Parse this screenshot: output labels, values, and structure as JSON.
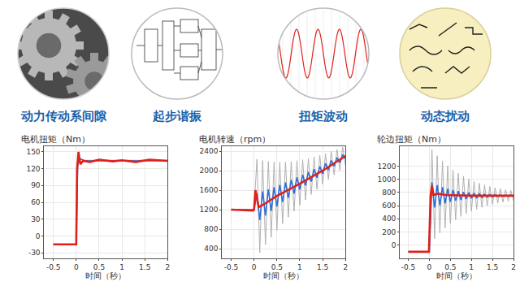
{
  "icons": [
    "动力传动系间隙",
    "起步谐振",
    "扭矩波动",
    "动态扰动"
  ],
  "chart_data": [
    {
      "type": "line",
      "title": "电机扭矩（Nm）",
      "xlabel": "时间（秒）",
      "xlim": [
        -0.7,
        2.0
      ],
      "xticks": [
        -0.5,
        0,
        0.5,
        1,
        1.5,
        2
      ],
      "ylim": [
        -40,
        160
      ],
      "yticks": [
        -30,
        0,
        30,
        60,
        90,
        120,
        150
      ],
      "grid": true,
      "series": [
        {
          "color": "#b0b0b0",
          "x": [
            -0.5,
            0,
            0.04,
            0.08,
            0.2,
            2
          ],
          "values": [
            -15,
            -15,
            145,
            130,
            135,
            135
          ]
        },
        {
          "color": "#2e6fd8",
          "x": [
            -0.5,
            0,
            0.03,
            0.07,
            0.2,
            2
          ],
          "values": [
            -15,
            -15,
            125,
            138,
            134,
            134
          ]
        },
        {
          "color": "#e0201b",
          "x": [
            -0.5,
            0,
            0.02,
            0.05,
            0.09,
            0.15,
            0.3,
            0.5,
            0.8,
            1,
            1.3,
            1.6,
            2
          ],
          "values": [
            -15,
            -15,
            120,
            150,
            128,
            134,
            132,
            136,
            133,
            135,
            132,
            136,
            134
          ]
        }
      ]
    },
    {
      "type": "line",
      "title": "电机转速（rpm）",
      "xlabel": "时间（秒）",
      "xlim": [
        -0.7,
        2.0
      ],
      "xticks": [
        -0.5,
        0,
        0.5,
        1,
        1.5,
        2
      ],
      "ylim": [
        200,
        2500
      ],
      "yticks": [
        400,
        800,
        1200,
        1600,
        2000,
        2400
      ],
      "grid": true,
      "series": [
        {
          "color": "#b0b0b0",
          "x": [
            -0.5,
            0,
            0.0625,
            0.125,
            0.1875,
            0.25,
            0.3125,
            0.375,
            0.4375,
            0.5,
            0.5625,
            0.625,
            0.6875,
            0.75,
            0.8125,
            0.875,
            0.9375,
            1,
            1.0625,
            1.125,
            1.1875,
            1.25,
            1.3125,
            1.375,
            1.4375,
            1.5,
            1.5625,
            1.625,
            1.6875,
            1.75,
            1.8125,
            1.875,
            1.9375,
            2
          ],
          "values": [
            1200,
            1200,
            2234,
            319,
            2206,
            481,
            2187,
            632,
            2176,
            777,
            2172,
            914,
            2177,
            1044,
            2187,
            1168,
            2204,
            1287,
            2224,
            1401,
            2250,
            1511,
            2280,
            1615,
            2315,
            1718,
            2351,
            1817,
            2392,
            1913,
            2435,
            2005,
            2481,
            2096
          ]
        },
        {
          "color": "#2e6fd8",
          "x": [
            -0.5,
            0,
            0.0625,
            0.125,
            0.1875,
            0.25,
            0.3125,
            0.375,
            0.4375,
            0.5,
            0.5625,
            0.625,
            0.6875,
            0.75,
            0.8125,
            0.875,
            0.9375,
            1,
            1.0625,
            1.125,
            1.1875,
            1.25,
            1.3125,
            1.375,
            1.4375,
            1.5,
            1.5625,
            1.625,
            1.6875,
            1.75,
            1.8125,
            1.875,
            1.9375,
            2
          ],
          "values": [
            1200,
            1200,
            1534,
            984,
            1574,
            1081,
            1617,
            1174,
            1662,
            1266,
            1708,
            1355,
            1758,
            1442,
            1809,
            1527,
            1862,
            1611,
            1916,
            1694,
            1972,
            1775,
            2029,
            1854,
            2088,
            1933,
            2147,
            2011,
            2207,
            2088,
            2268,
            2163,
            2331,
            2239
          ]
        },
        {
          "color": "#e0201b",
          "x": [
            -0.5,
            -0.02,
            0,
            0.03,
            0.1,
            0.2,
            0.5,
            1,
            1.5,
            2
          ],
          "values": [
            1200,
            1180,
            1200,
            1600,
            1250,
            1300,
            1480,
            1730,
            2000,
            2300
          ]
        }
      ]
    },
    {
      "type": "line",
      "title": "轮边扭矩（Nm）",
      "xlabel": "时间（秒）",
      "xlim": [
        -0.7,
        2.0
      ],
      "xticks": [
        -0.5,
        0,
        0.5,
        1,
        1.5,
        2
      ],
      "ylim": [
        -200,
        1500
      ],
      "yticks": [
        0,
        200,
        400,
        600,
        800,
        1000,
        1200
      ],
      "grid": true,
      "series": [
        {
          "color": "#b0b0b0",
          "x": [
            -0.5,
            0,
            0.0625,
            0.125,
            0.1875,
            0.25,
            0.3125,
            0.375,
            0.4375,
            0.5,
            0.5625,
            0.625,
            0.6875,
            0.75,
            0.8125,
            0.875,
            0.9375,
            1,
            1.0625,
            1.125,
            1.1875,
            1.25,
            1.3125,
            1.375,
            1.4375,
            1.5,
            1.5625,
            1.625,
            1.6875,
            1.75,
            1.8125,
            1.875,
            1.9375,
            2
          ],
          "values": [
            -100,
            -100,
            1450,
            99,
            1356,
            187,
            1274,
            263,
            1203,
            329,
            1142,
            386,
            1089,
            435,
            1043,
            478,
            1003,
            514,
            969,
            546,
            940,
            574,
            914,
            597,
            892,
            618,
            873,
            636,
            856,
            651,
            842,
            665,
            829,
            676
          ]
        },
        {
          "color": "#2e6fd8",
          "x": [
            -0.5,
            0,
            0.0625,
            0.125,
            0.1875,
            0.25,
            0.3125,
            0.375,
            0.4375,
            0.5,
            0.5625,
            0.625,
            0.6875,
            0.75,
            0.8125,
            0.875,
            0.9375,
            1,
            1.0625,
            1.125,
            1.1875,
            1.25,
            1.3125,
            1.375,
            1.4375,
            1.5,
            1.5625,
            1.625,
            1.6875,
            1.75,
            1.8125,
            1.875,
            1.9375,
            2
          ],
          "values": [
            -100,
            -100,
            950,
            570,
            912,
            604,
            881,
            632,
            856,
            654,
            836,
            673,
            820,
            687,
            806,
            699,
            796,
            709,
            787,
            717,
            780,
            723,
            774,
            728,
            770,
            732,
            766,
            736,
            763,
            738,
            760,
            741,
            758,
            743
          ]
        },
        {
          "color": "#e0201b",
          "x": [
            -0.5,
            -0.01,
            0.03,
            0.06,
            0.1,
            0.2,
            0.4,
            1,
            2
          ],
          "values": [
            -100,
            -100,
            750,
            900,
            760,
            780,
            760,
            750,
            750
          ]
        }
      ]
    }
  ]
}
